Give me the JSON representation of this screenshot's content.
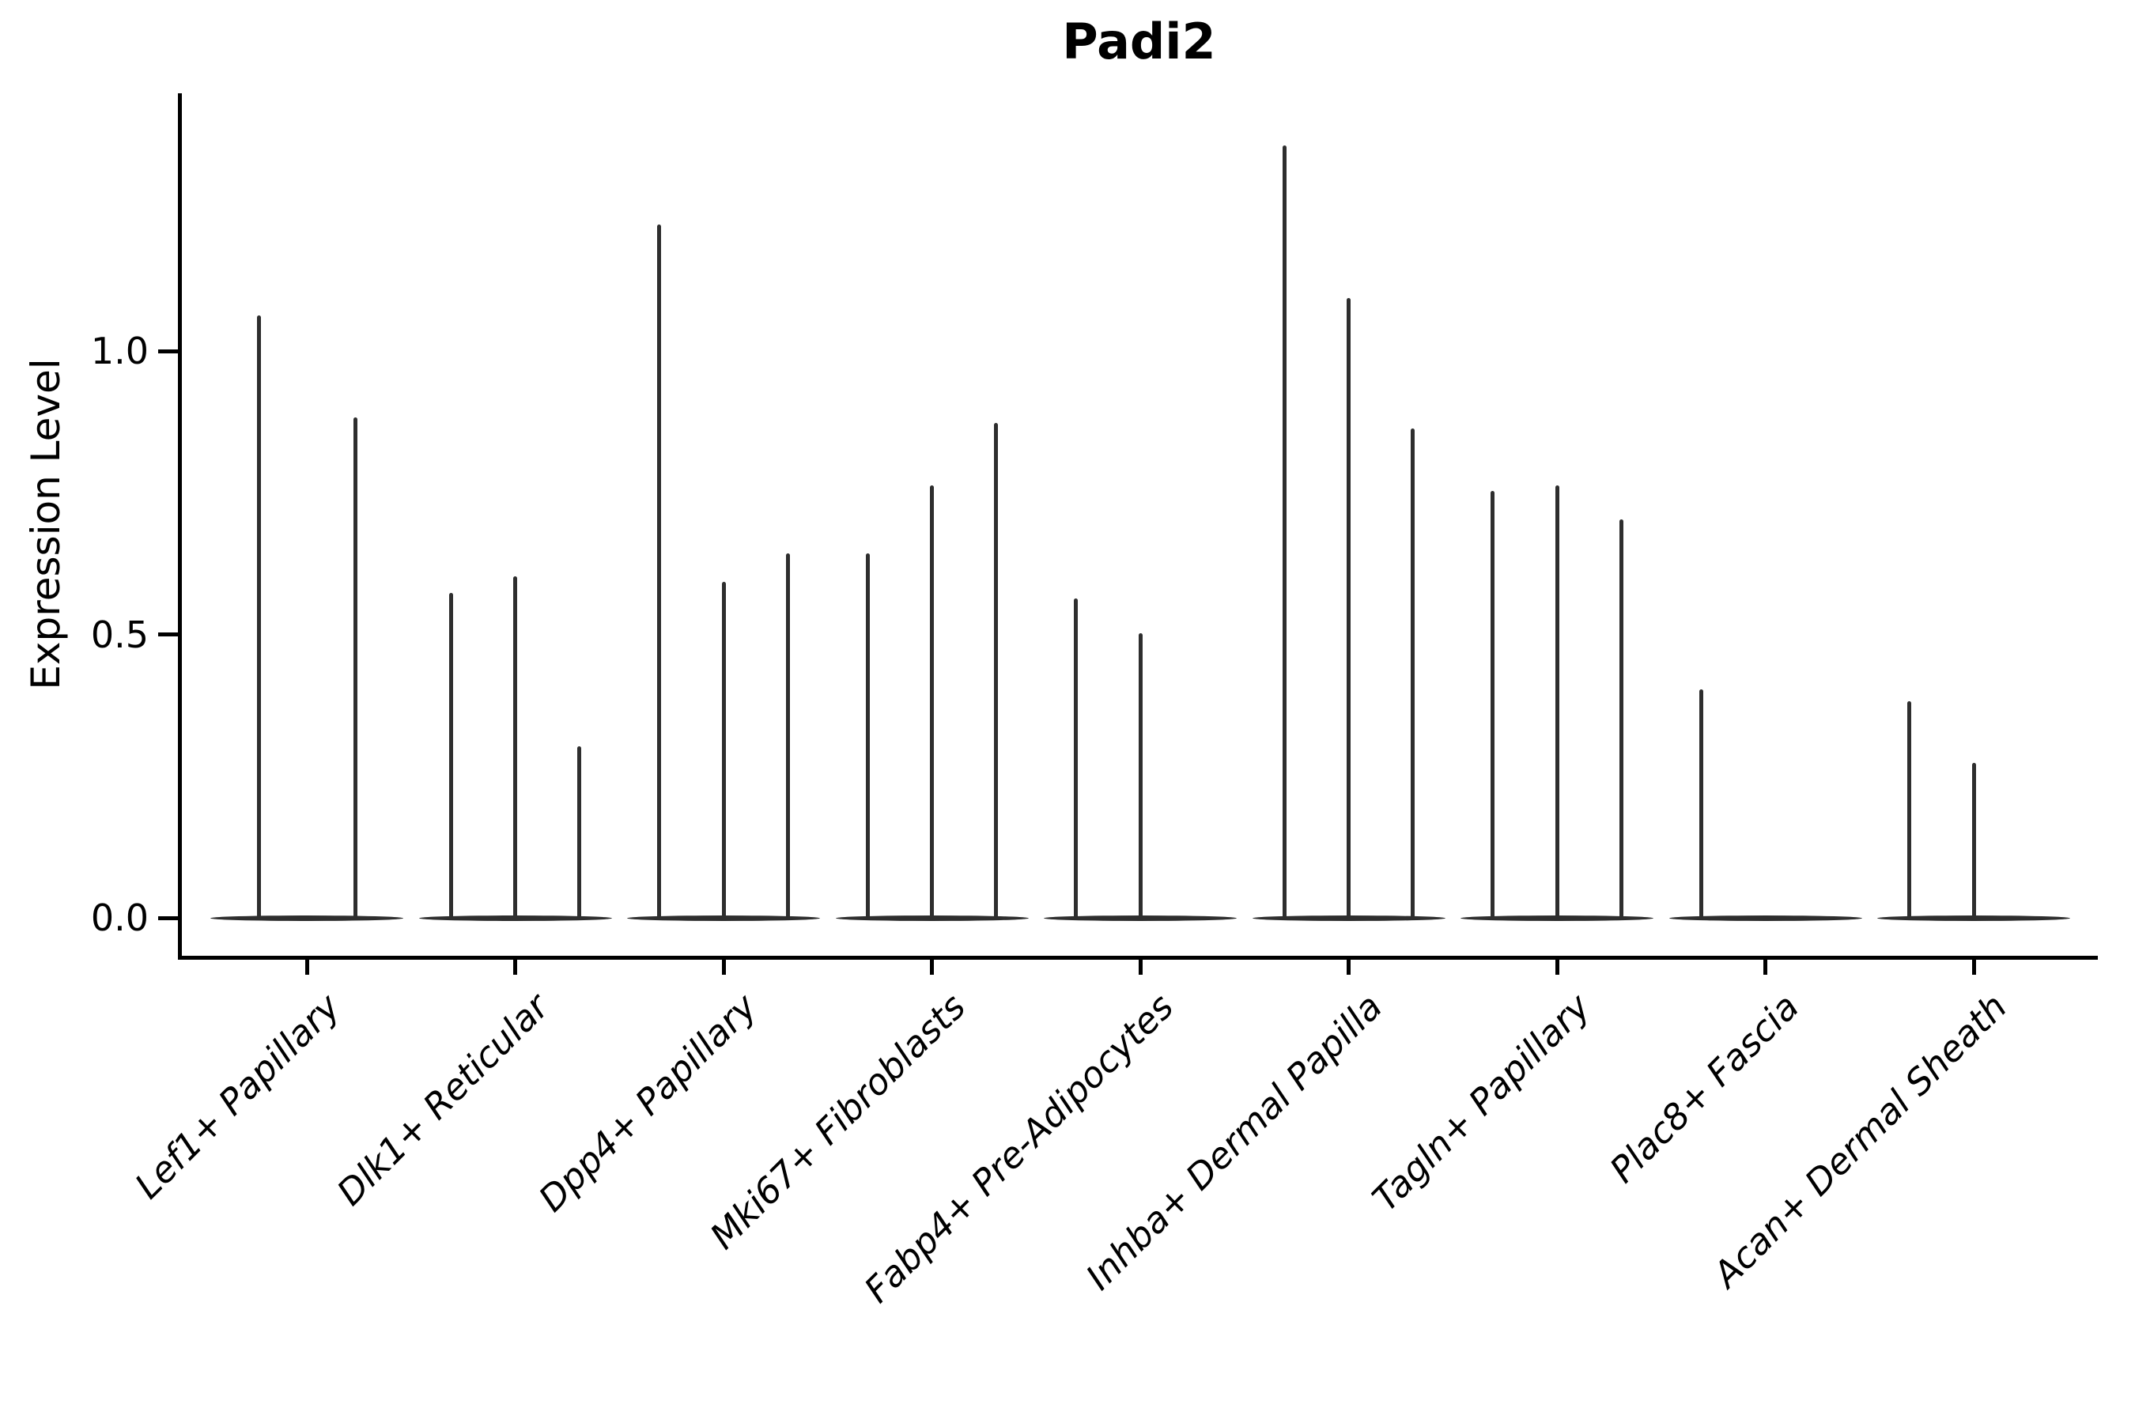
{
  "title": "Padi2",
  "chart_data": {
    "type": "violin",
    "title": "Padi2",
    "xlabel": "",
    "ylabel": "Expression Level",
    "yticks": [
      "0.0",
      "0.5",
      "1.0"
    ],
    "ytick_values": [
      0.0,
      0.5,
      1.0
    ],
    "ylim": [
      -0.07,
      1.45
    ],
    "grid": false,
    "legend": false,
    "violin_color": "#2e2e2e",
    "axis_color": "#000000",
    "note_shape": "each violin is flattened at 0 expression with a thin density spike up to its maximum value",
    "categories": [
      "Lef1+ Papillary",
      "Dlk1+ Reticular",
      "Dpp4+ Papillary",
      "Mki67+ Fibroblasts",
      "Fabp4+ Pre-Adipocytes",
      "Inhba+ Dermal Papilla",
      "Tagln+ Papillary",
      "Plac8+ Fascia",
      "Acan+ Dermal Sheath"
    ],
    "groups": [
      {
        "category": "Lef1+ Papillary",
        "spike_max_values": [
          1.06,
          0.88
        ]
      },
      {
        "category": "Dlk1+ Reticular",
        "spike_max_values": [
          0.57,
          0.6,
          0.3
        ]
      },
      {
        "category": "Dpp4+ Papillary",
        "spike_max_values": [
          1.22,
          0.59,
          0.64
        ]
      },
      {
        "category": "Mki67+ Fibroblasts",
        "spike_max_values": [
          0.64,
          0.76,
          0.87
        ]
      },
      {
        "category": "Fabp4+ Pre-Adipocytes",
        "spike_max_values": [
          0.56,
          0.5,
          0
        ]
      },
      {
        "category": "Inhba+ Dermal Papilla",
        "spike_max_values": [
          1.36,
          1.09,
          0.86
        ]
      },
      {
        "category": "Tagln+ Papillary",
        "spike_max_values": [
          0.75,
          0.76,
          0.7
        ]
      },
      {
        "category": "Plac8+ Fascia",
        "spike_max_values": [
          0.4,
          0,
          0
        ]
      },
      {
        "category": "Acan+ Dermal Sheath",
        "spike_max_values": [
          0.38,
          0.27,
          0
        ]
      }
    ]
  }
}
